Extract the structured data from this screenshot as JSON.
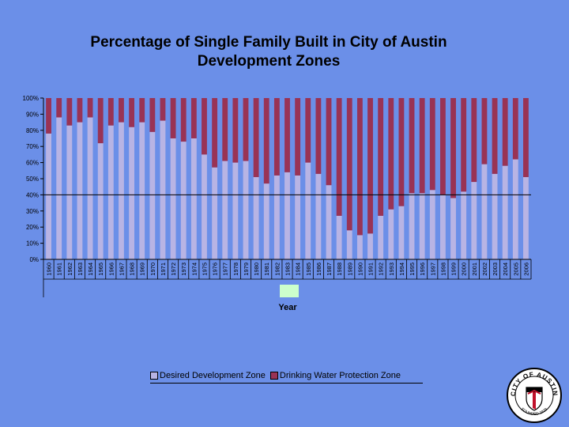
{
  "chart_data": {
    "type": "bar",
    "stacked": true,
    "title": "Percentage of Single Family Built in City of Austin Development Zones",
    "title_lines": [
      "Percentage of Single Family Built in City of Austin",
      "Development Zones"
    ],
    "xlabel": "Year",
    "ylabel": "",
    "ylim": [
      0,
      100
    ],
    "yticks": [
      "0%",
      "10%",
      "20%",
      "30%",
      "40%",
      "50%",
      "60%",
      "70%",
      "80%",
      "90%",
      "100%"
    ],
    "reference_line": 40,
    "categories": [
      "1960",
      "1961",
      "1962",
      "1963",
      "1964",
      "1965",
      "1966",
      "1967",
      "1968",
      "1969",
      "1970",
      "1971",
      "1972",
      "1973",
      "1974",
      "1975",
      "1976",
      "1977",
      "1978",
      "1979",
      "1980",
      "1981",
      "1982",
      "1983",
      "1984",
      "1985",
      "1986",
      "1987",
      "1988",
      "1989",
      "1990",
      "1991",
      "1992",
      "1993",
      "1994",
      "1995",
      "1996",
      "1997",
      "1998",
      "1999",
      "2000",
      "2001",
      "2002",
      "2003",
      "2004",
      "2005",
      "2006"
    ],
    "series": [
      {
        "name": "Desired Development Zone",
        "color": "#B8B4E4",
        "values": [
          78,
          88,
          83,
          85,
          88,
          72,
          83,
          85,
          82,
          85,
          79,
          86,
          75,
          73,
          75,
          65,
          57,
          61,
          60,
          61,
          51,
          47,
          52,
          54,
          52,
          60,
          53,
          46,
          27,
          18,
          15,
          16,
          27,
          31,
          33,
          41,
          41,
          43,
          40,
          38,
          42,
          48,
          59,
          53,
          58,
          62,
          51
        ]
      },
      {
        "name": "Drinking Water Protection Zone",
        "color": "#993355",
        "values": [
          22,
          12,
          17,
          15,
          12,
          28,
          17,
          15,
          18,
          15,
          21,
          14,
          25,
          27,
          25,
          35,
          43,
          39,
          40,
          39,
          49,
          53,
          48,
          46,
          48,
          40,
          47,
          54,
          73,
          82,
          85,
          84,
          73,
          69,
          67,
          59,
          59,
          57,
          60,
          62,
          58,
          52,
          41,
          47,
          42,
          38,
          49
        ]
      }
    ]
  },
  "logo": {
    "text_top": "CITY OF AUSTIN",
    "text_bottom": "FOUNDED 1839"
  }
}
